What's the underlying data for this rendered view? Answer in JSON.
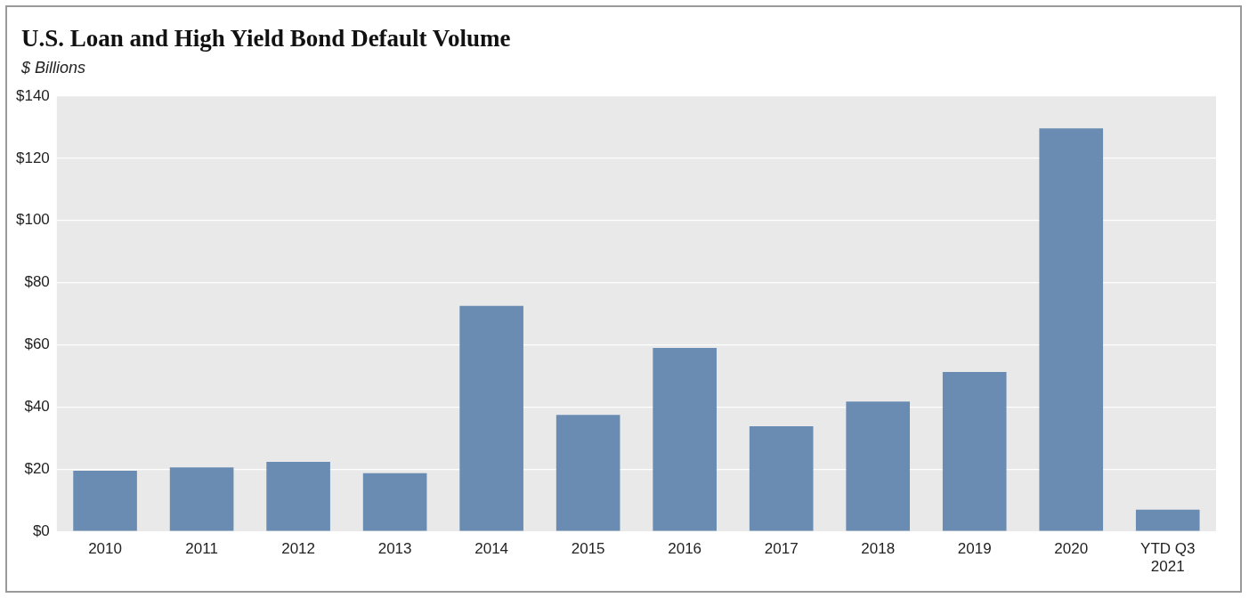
{
  "chart_data": {
    "type": "bar",
    "title": "U.S. Loan and High Yield Bond Default Volume",
    "subtitle": "$ Billions",
    "categories": [
      "2010",
      "2011",
      "2012",
      "2013",
      "2014",
      "2015",
      "2016",
      "2017",
      "2018",
      "2019",
      "2020",
      "YTD Q3 2021"
    ],
    "values": [
      19.5,
      20.6,
      22.4,
      18.7,
      72.5,
      37.5,
      59,
      33.8,
      41.8,
      51.3,
      129.6,
      7
    ],
    "color": "#6a8cb2",
    "ylim": [
      0,
      140
    ],
    "yticks": [
      {
        "value": 0,
        "label": "$0"
      },
      {
        "value": 20,
        "label": "$20"
      },
      {
        "value": 40,
        "label": "$40"
      },
      {
        "value": 60,
        "label": "$60"
      },
      {
        "value": 80,
        "label": "$80"
      },
      {
        "value": 100,
        "label": "$100"
      },
      {
        "value": 120,
        "label": "$120"
      },
      {
        "value": 140,
        "label": "$140"
      }
    ],
    "grid": "y"
  }
}
